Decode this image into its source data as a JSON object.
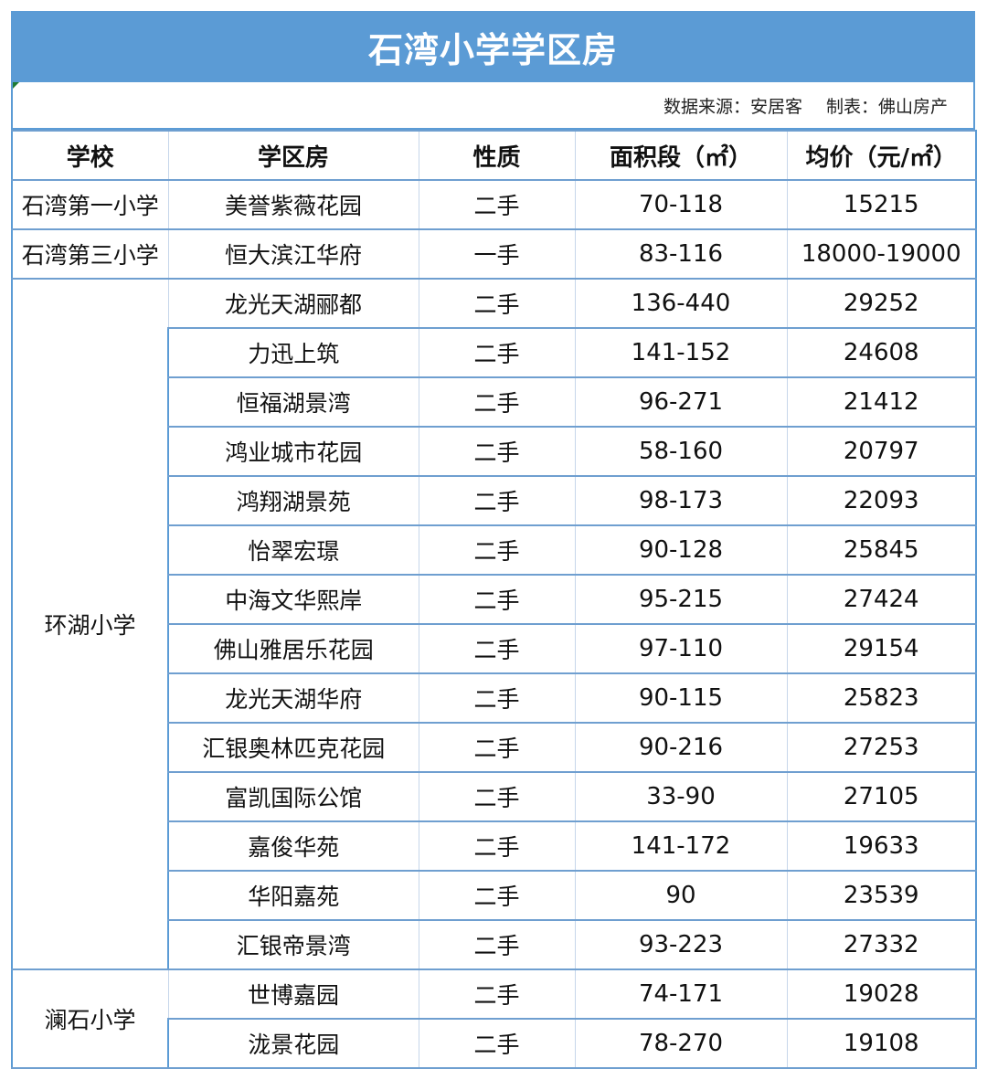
{
  "title": "石湾小学学区房",
  "source": {
    "data_source": "数据来源：安居客",
    "made_by": "制表：佛山房产"
  },
  "colors": {
    "title_bg": "#5b9bd5",
    "title_text": "#ffffff",
    "border": "#5b9bd5"
  },
  "table": {
    "headers": [
      "学校",
      "学区房",
      "性质",
      "面积段（㎡）",
      "均价（元/㎡）"
    ],
    "groups": [
      {
        "school": "石湾第一小学",
        "rows": [
          {
            "estate": "美誉紫薇花园",
            "type": "二手",
            "area": "70-118",
            "price": "15215"
          }
        ]
      },
      {
        "school": "石湾第三小学",
        "rows": [
          {
            "estate": "恒大滨江华府",
            "type": "一手",
            "area": "83-116",
            "price": "18000-19000"
          }
        ]
      },
      {
        "school": "环湖小学",
        "rows": [
          {
            "estate": "龙光天湖郦都",
            "type": "二手",
            "area": "136-440",
            "price": "29252"
          },
          {
            "estate": "力迅上筑",
            "type": "二手",
            "area": "141-152",
            "price": "24608"
          },
          {
            "estate": "恒福湖景湾",
            "type": "二手",
            "area": "96-271",
            "price": "21412"
          },
          {
            "estate": "鸿业城市花园",
            "type": "二手",
            "area": "58-160",
            "price": "20797"
          },
          {
            "estate": "鸿翔湖景苑",
            "type": "二手",
            "area": "98-173",
            "price": "22093"
          },
          {
            "estate": "怡翠宏璟",
            "type": "二手",
            "area": "90-128",
            "price": "25845"
          },
          {
            "estate": "中海文华熙岸",
            "type": "二手",
            "area": "95-215",
            "price": "27424"
          },
          {
            "estate": "佛山雅居乐花园",
            "type": "二手",
            "area": "97-110",
            "price": "29154"
          },
          {
            "estate": "龙光天湖华府",
            "type": "二手",
            "area": "90-115",
            "price": "25823"
          },
          {
            "estate": "汇银奥林匹克花园",
            "type": "二手",
            "area": "90-216",
            "price": "27253"
          },
          {
            "estate": "富凯国际公馆",
            "type": "二手",
            "area": "33-90",
            "price": "27105"
          },
          {
            "estate": "嘉俊华苑",
            "type": "二手",
            "area": "141-172",
            "price": "19633"
          },
          {
            "estate": "华阳嘉苑",
            "type": "二手",
            "area": "90",
            "price": "23539"
          },
          {
            "estate": "汇银帝景湾",
            "type": "二手",
            "area": "93-223",
            "price": "27332"
          }
        ]
      },
      {
        "school": "澜石小学",
        "rows": [
          {
            "estate": "世博嘉园",
            "type": "二手",
            "area": "74-171",
            "price": "19028"
          },
          {
            "estate": "泷景花园",
            "type": "二手",
            "area": "78-270",
            "price": "19108"
          }
        ]
      }
    ]
  }
}
